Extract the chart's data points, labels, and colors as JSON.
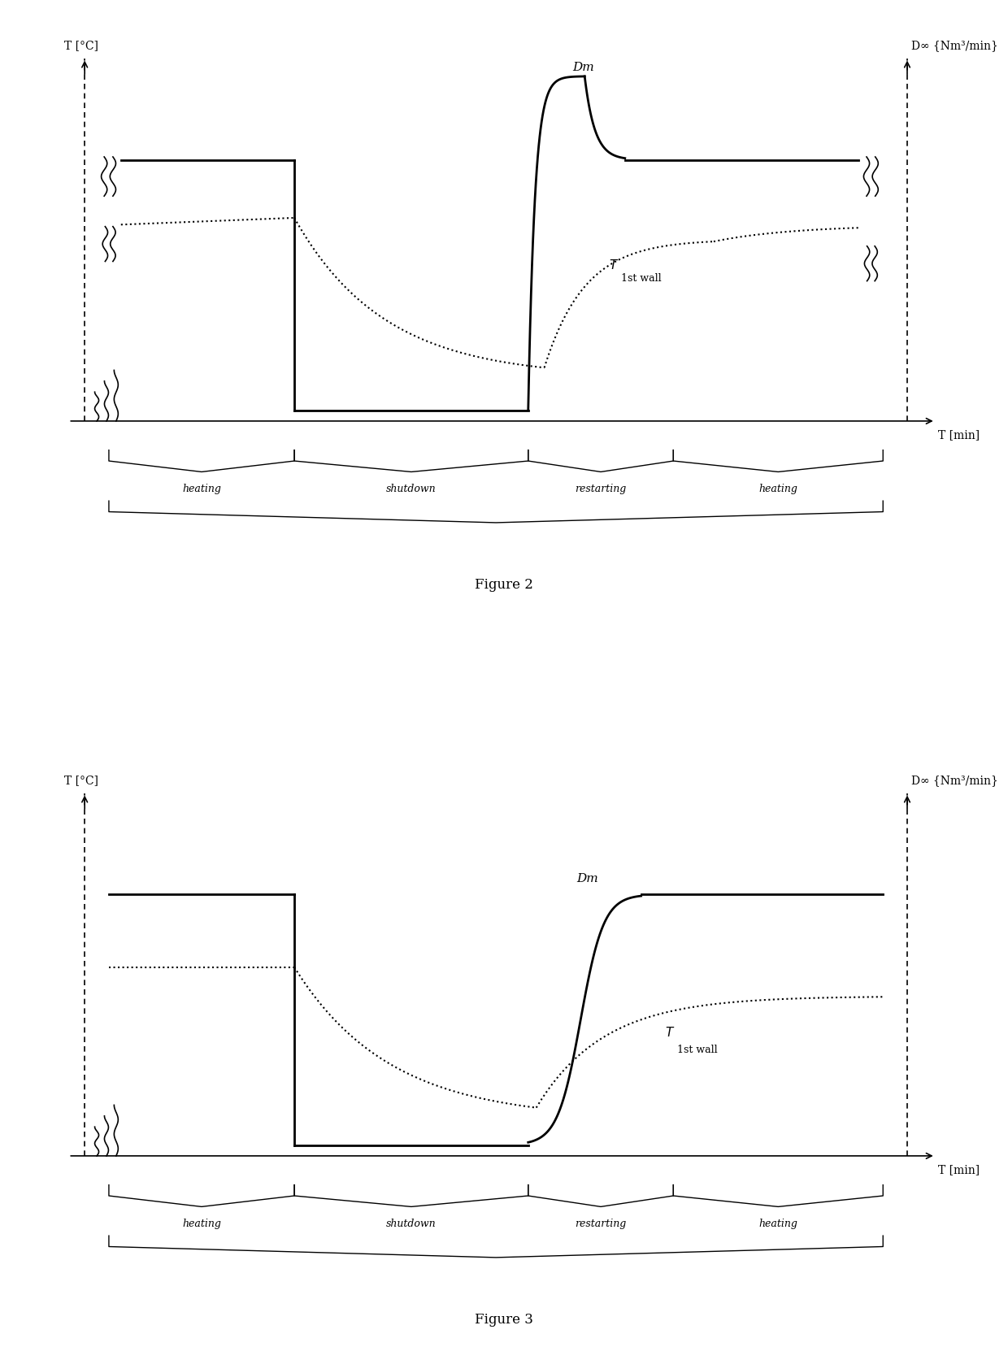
{
  "fig2_title": "Figure 2",
  "fig3_title": "Figure 3",
  "ylabel_left": "T [°C]",
  "ylabel_right": "D∞ {Nm³/min}",
  "xlabel": "T [min]",
  "phases": [
    "heating",
    "shutdown",
    "restarting",
    "heating"
  ],
  "background_color": "#ffffff",
  "line_color": "#000000"
}
